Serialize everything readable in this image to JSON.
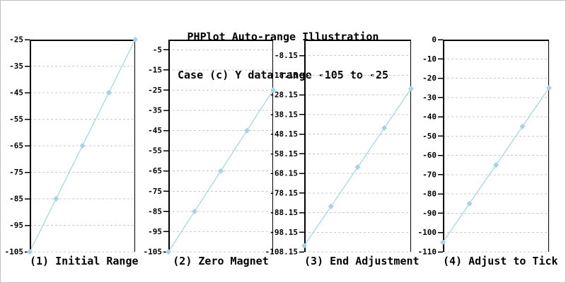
{
  "header": {
    "title": "PHPlot Auto-range Illustration",
    "subtitle": "Case (c) Y data range -105 to -25"
  },
  "colors": {
    "line": "#a0d4e6",
    "marker": "#a0d4e6",
    "grid": "#c9c9c9",
    "axis": "#000000",
    "text": "#000000",
    "background": "#ffffff",
    "image_border": "#c0c0c0"
  },
  "chart_data": [
    {
      "type": "line",
      "caption": "(1) Initial Range",
      "x": [
        1,
        2,
        3,
        4,
        5
      ],
      "values": [
        -105,
        -85,
        -65,
        -45,
        -25
      ],
      "ylim": [
        -105,
        -25
      ],
      "marker": "diamond",
      "grid": "horizontal-dashed",
      "yticks": [
        {
          "v": -25,
          "label": "-25"
        },
        {
          "v": -35,
          "label": "-35"
        },
        {
          "v": -45,
          "label": "-45"
        },
        {
          "v": -55,
          "label": "-55"
        },
        {
          "v": -65,
          "label": "-65"
        },
        {
          "v": -75,
          "label": "-75"
        },
        {
          "v": -85,
          "label": "-85"
        },
        {
          "v": -95,
          "label": "-95"
        },
        {
          "v": -105,
          "label": "-105"
        }
      ]
    },
    {
      "type": "line",
      "caption": "(2) Zero Magnet",
      "x": [
        1,
        2,
        3,
        4,
        5
      ],
      "values": [
        -105,
        -85,
        -65,
        -45,
        -25
      ],
      "ylim": [
        -105,
        0
      ],
      "marker": "diamond",
      "grid": "horizontal-dashed",
      "yticks": [
        {
          "v": -5,
          "label": "-5"
        },
        {
          "v": -15,
          "label": "-15"
        },
        {
          "v": -25,
          "label": "-25"
        },
        {
          "v": -35,
          "label": "-35"
        },
        {
          "v": -45,
          "label": "-45"
        },
        {
          "v": -55,
          "label": "-55"
        },
        {
          "v": -65,
          "label": "-65"
        },
        {
          "v": -75,
          "label": "-75"
        },
        {
          "v": -85,
          "label": "-85"
        },
        {
          "v": -95,
          "label": "-95"
        },
        {
          "v": -105,
          "label": "-105"
        }
      ]
    },
    {
      "type": "line",
      "caption": "(3) End Adjustment",
      "x": [
        1,
        2,
        3,
        4,
        5
      ],
      "values": [
        -105,
        -85,
        -65,
        -45,
        -25
      ],
      "ylim": [
        -108.15,
        0
      ],
      "marker": "diamond",
      "grid": "horizontal-dashed",
      "yticks": [
        {
          "v": -8.15,
          "label": "-8.15"
        },
        {
          "v": -18.15,
          "label": "-18.15"
        },
        {
          "v": -28.15,
          "label": "-28.15"
        },
        {
          "v": -38.15,
          "label": "-38.15"
        },
        {
          "v": -48.15,
          "label": "-48.15"
        },
        {
          "v": -58.15,
          "label": "-58.15"
        },
        {
          "v": -68.15,
          "label": "-68.15"
        },
        {
          "v": -78.15,
          "label": "-78.15"
        },
        {
          "v": -88.15,
          "label": "-88.15"
        },
        {
          "v": -98.15,
          "label": "-98.15"
        },
        {
          "v": -108.15,
          "label": "-108.15"
        }
      ]
    },
    {
      "type": "line",
      "caption": "(4) Adjust to Tick",
      "x": [
        1,
        2,
        3,
        4,
        5
      ],
      "values": [
        -105,
        -85,
        -65,
        -45,
        -25
      ],
      "ylim": [
        -110,
        0
      ],
      "marker": "diamond",
      "grid": "horizontal-dashed",
      "yticks": [
        {
          "v": 0,
          "label": "0"
        },
        {
          "v": -10,
          "label": "-10"
        },
        {
          "v": -20,
          "label": "-20"
        },
        {
          "v": -30,
          "label": "-30"
        },
        {
          "v": -40,
          "label": "-40"
        },
        {
          "v": -50,
          "label": "-50"
        },
        {
          "v": -60,
          "label": "-60"
        },
        {
          "v": -70,
          "label": "-70"
        },
        {
          "v": -80,
          "label": "-80"
        },
        {
          "v": -90,
          "label": "-90"
        },
        {
          "v": -100,
          "label": "-100"
        },
        {
          "v": -110,
          "label": "-110"
        }
      ]
    }
  ]
}
